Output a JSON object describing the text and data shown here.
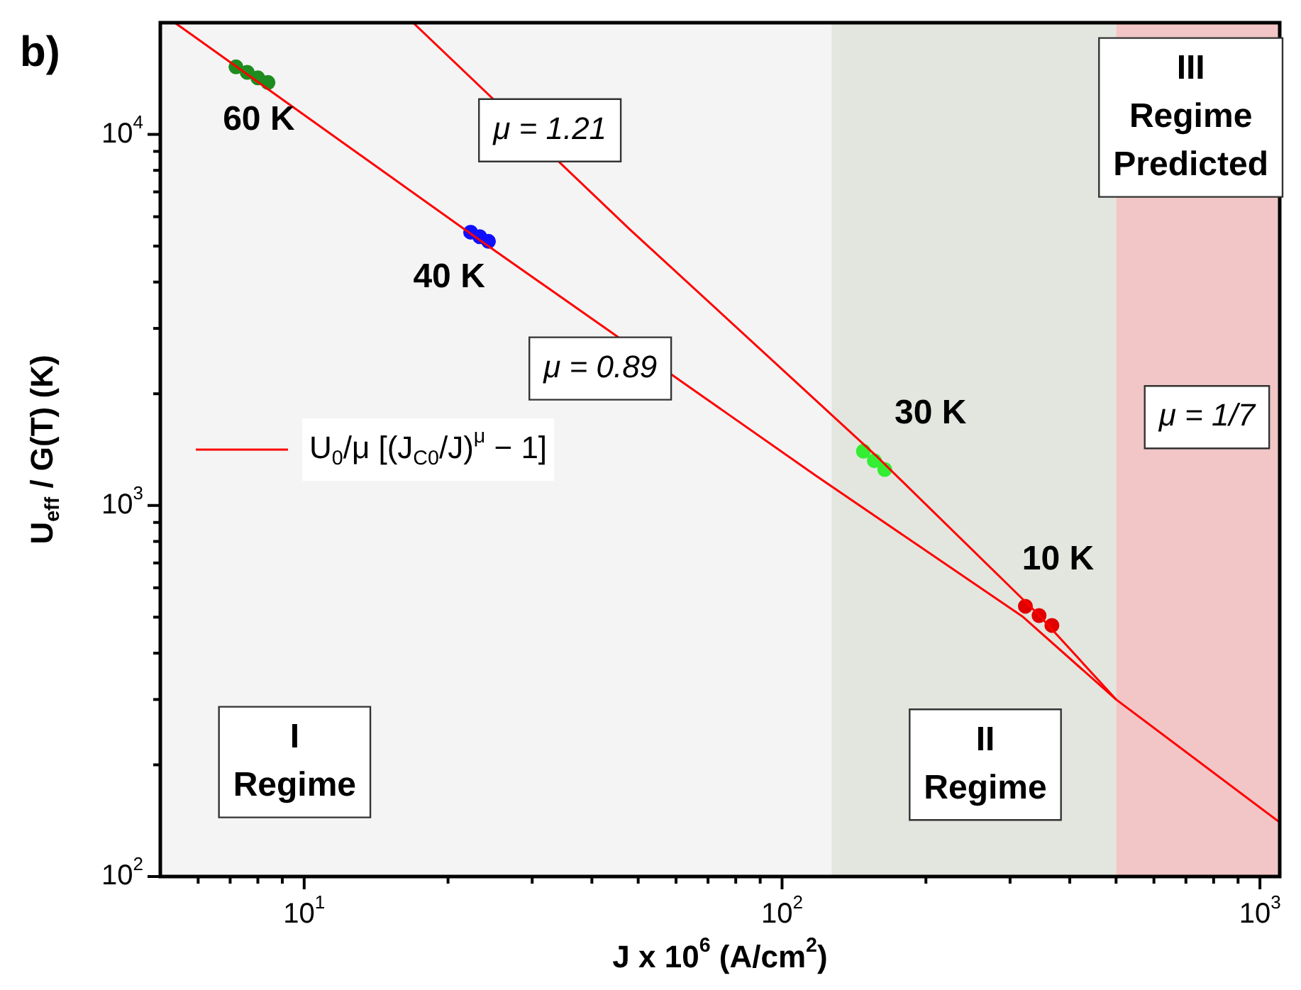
{
  "chart_data": {
    "type": "scatter",
    "xlabel": "J x 10$^{6}$ (A/cm$^{2}$)",
    "ylabel": "U$_{eff}$ / G(T) (K)",
    "log": "xy",
    "xlim": [
      5,
      1100
    ],
    "ylim": [
      100,
      20000
    ],
    "xticks": [
      {
        "value": 6,
        "label": null
      },
      {
        "value": 7,
        "label": null
      },
      {
        "value": 8,
        "label": null
      },
      {
        "value": 9,
        "label": null
      },
      {
        "value": 10,
        "label": "10$^{1}$"
      },
      {
        "value": 20,
        "label": null
      },
      {
        "value": 30,
        "label": null
      },
      {
        "value": 40,
        "label": null
      },
      {
        "value": 50,
        "label": null
      },
      {
        "value": 60,
        "label": null
      },
      {
        "value": 70,
        "label": null
      },
      {
        "value": 80,
        "label": null
      },
      {
        "value": 90,
        "label": null
      },
      {
        "value": 100,
        "label": "10$^{2}$"
      },
      {
        "value": 200,
        "label": null
      },
      {
        "value": 300,
        "label": null
      },
      {
        "value": 400,
        "label": null
      },
      {
        "value": 500,
        "label": null
      },
      {
        "value": 600,
        "label": null
      },
      {
        "value": 700,
        "label": null
      },
      {
        "value": 800,
        "label": null
      },
      {
        "value": 900,
        "label": null
      },
      {
        "value": 1000,
        "label": "10$^{3}$"
      }
    ],
    "yticks": [
      {
        "value": 100,
        "label": "10$^{2}$"
      },
      {
        "value": 200,
        "label": null
      },
      {
        "value": 300,
        "label": null
      },
      {
        "value": 400,
        "label": null
      },
      {
        "value": 500,
        "label": null
      },
      {
        "value": 600,
        "label": null
      },
      {
        "value": 700,
        "label": null
      },
      {
        "value": 800,
        "label": null
      },
      {
        "value": 900,
        "label": null
      },
      {
        "value": 1000,
        "label": "10$^{3}$"
      },
      {
        "value": 2000,
        "label": null
      },
      {
        "value": 3000,
        "label": null
      },
      {
        "value": 4000,
        "label": null
      },
      {
        "value": 5000,
        "label": null
      },
      {
        "value": 6000,
        "label": null
      },
      {
        "value": 7000,
        "label": null
      },
      {
        "value": 8000,
        "label": null
      },
      {
        "value": 9000,
        "label": null
      },
      {
        "value": 10000,
        "label": "10$^{4}$"
      }
    ],
    "grid": false,
    "legend": "left",
    "marker": "circle",
    "series": [
      {
        "type": "line",
        "name": "U$_{0}$/μ [(J$_{C0}$/J)$^{μ}$ − 1]",
        "color": "#ff0000",
        "marker": "none",
        "x": [
          5.36,
          22.3,
          67,
          118,
          318,
          500,
          1100
        ],
        "values": [
          20000,
          5400,
          2000,
          1200,
          503,
          300,
          140
        ]
      },
      {
        "type": "line",
        "color": "#ff0000",
        "marker": "none",
        "x": [
          16.9,
          48,
          157,
          343,
          500
        ],
        "values": [
          20000,
          5550,
          1365,
          510,
          300
        ]
      },
      {
        "color": "#1e8c1e",
        "x": [
          7.2,
          7.6,
          8.0,
          8.4
        ],
        "values": [
          15200,
          14700,
          14200,
          13800
        ]
      },
      {
        "color": "#1010ff",
        "x": [
          22.3,
          23.3,
          24.3
        ],
        "values": [
          5450,
          5300,
          5150
        ]
      },
      {
        "color": "#33ee33",
        "x": [
          148,
          156,
          164
        ],
        "values": [
          1400,
          1320,
          1250
        ]
      },
      {
        "color": "#e00000",
        "x": [
          323,
          345,
          367
        ],
        "values": [
          535,
          505,
          475
        ]
      }
    ],
    "bands": [
      {
        "axis": "x",
        "from": 5,
        "to": 127,
        "color": "#f4f4f4"
      },
      {
        "axis": "x",
        "from": 127,
        "to": 500,
        "color": "#e2e6df"
      },
      {
        "axis": "x",
        "from": 500,
        "to": 1100,
        "color": "#f2c6c6"
      }
    ],
    "annotations": [
      "b)",
      "60 K",
      "40 K",
      "30 K",
      "10 K",
      "μ = 1.21",
      "μ = 0.89",
      "μ = 1/7",
      "I\nRegime",
      "II\nRegime",
      "III\nRegime\nPredicted"
    ]
  }
}
